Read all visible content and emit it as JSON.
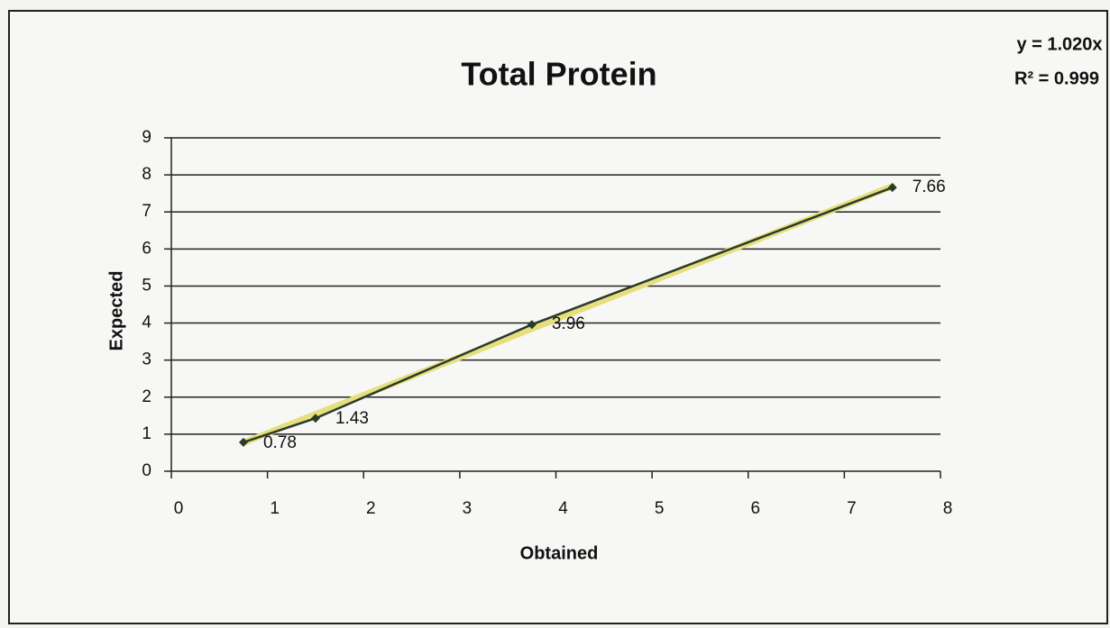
{
  "chart_data": {
    "type": "scatter",
    "title": "Total Protein",
    "x_label": "Obtained",
    "y_label": "Expected",
    "annotations": [
      "y = 1.020x",
      "R² = 0.999"
    ],
    "series": [
      {
        "color": "#2b3a2b",
        "x": [
          0.75,
          1.5,
          3.75,
          7.5
        ],
        "values": [
          0.78,
          1.43,
          3.96,
          7.66
        ]
      }
    ],
    "trendline_color": "#e6df7e",
    "xlim": [
      0,
      8
    ],
    "xticks": [
      0,
      1,
      2,
      3,
      4,
      5,
      6,
      7,
      8
    ],
    "ylim": [
      0,
      9
    ],
    "yticks": [
      0,
      1,
      2,
      3,
      4,
      5,
      6,
      7,
      8,
      9
    ],
    "grid": true
  }
}
